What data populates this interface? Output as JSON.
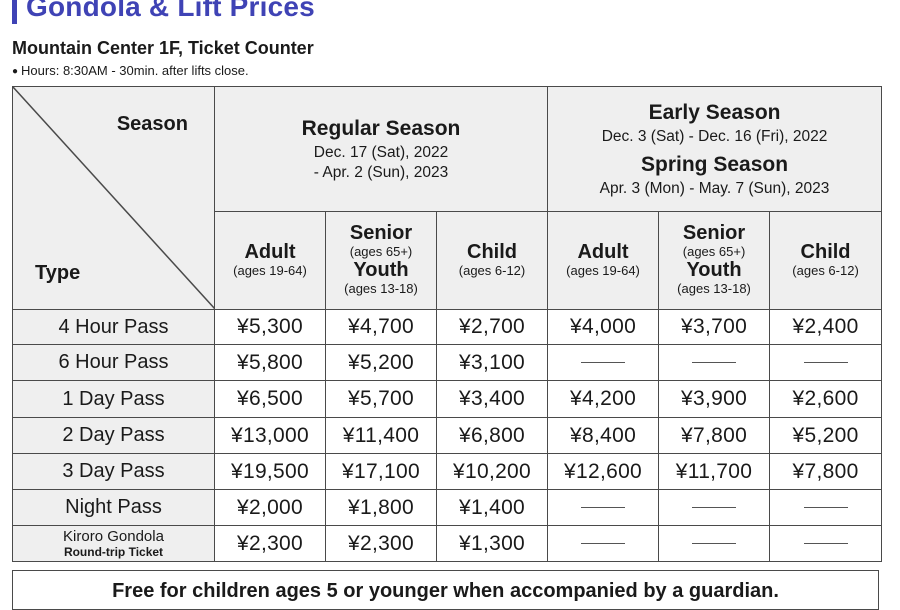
{
  "header": {
    "title": "Gondola & Lift Prices",
    "subtitle": "Mountain Center 1F, Ticket Counter",
    "hours": "Hours: 8:30AM - 30min. after lifts close."
  },
  "table": {
    "corner": {
      "season_label": "Season",
      "type_label": "Type"
    },
    "regular": {
      "name": "Regular Season",
      "date1": "Dec. 17 (Sat), 2022",
      "date2": "- Apr. 2 (Sun), 2023"
    },
    "early": {
      "name": "Early Season",
      "date": "Dec. 3 (Sat) - Dec. 16 (Fri), 2022",
      "spring_name": "Spring Season",
      "spring_date": "Apr. 3 (Mon) - May. 7 (Sun), 2023"
    },
    "columns": {
      "adult": "Adult",
      "adult_ages": "(ages 19-64)",
      "senior": "Senior",
      "senior_ages": "(ages 65+)",
      "youth": "Youth",
      "youth_ages": "(ages 13-18)",
      "child": "Child",
      "child_ages": "(ages 6-12)"
    },
    "rows": [
      {
        "label": "4 Hour Pass",
        "prices": [
          "¥5,300",
          "¥4,700",
          "¥2,700",
          "¥4,000",
          "¥3,700",
          "¥2,400"
        ]
      },
      {
        "label": "6 Hour Pass",
        "prices": [
          "¥5,800",
          "¥5,200",
          "¥3,100",
          "",
          "",
          ""
        ]
      },
      {
        "label": "1 Day Pass",
        "prices": [
          "¥6,500",
          "¥5,700",
          "¥3,400",
          "¥4,200",
          "¥3,900",
          "¥2,600"
        ]
      },
      {
        "label": "2 Day Pass",
        "prices": [
          "¥13,000",
          "¥11,400",
          "¥6,800",
          "¥8,400",
          "¥7,800",
          "¥5,200"
        ]
      },
      {
        "label": "3 Day Pass",
        "prices": [
          "¥19,500",
          "¥17,100",
          "¥10,200",
          "¥12,600",
          "¥11,700",
          "¥7,800"
        ]
      },
      {
        "label": "Night Pass",
        "prices": [
          "¥2,000",
          "¥1,800",
          "¥1,400",
          "",
          "",
          ""
        ]
      },
      {
        "label": "Kiroro Gondola",
        "sublabel": "Round-trip Ticket",
        "prices": [
          "¥2,300",
          "¥2,300",
          "¥1,300",
          "",
          "",
          ""
        ]
      }
    ]
  },
  "note": "Free for children ages 5 or younger when accompanied by a guardian."
}
